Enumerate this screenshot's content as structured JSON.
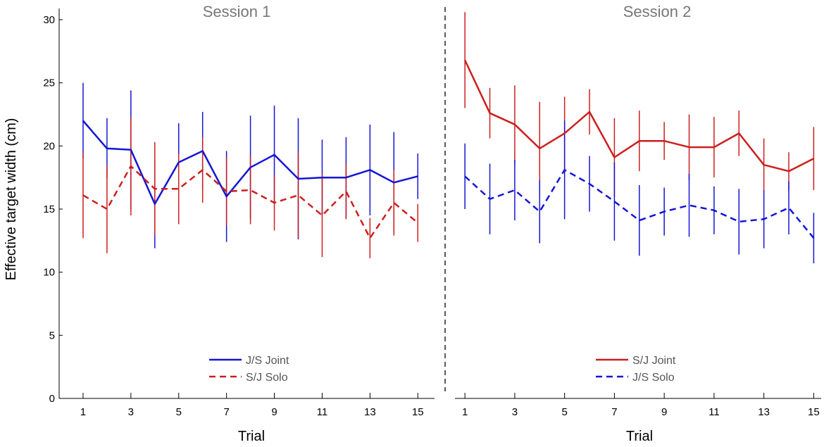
{
  "chart_data": {
    "type": "line",
    "ylabel": "Effective target width (cm)",
    "ylim": [
      0,
      30
    ],
    "yticks": [
      0,
      5,
      10,
      15,
      20,
      25,
      30
    ],
    "panels": [
      {
        "title": "Session 1",
        "xlabel": "Trial",
        "xlim": [
          0,
          15.7
        ],
        "xticks": [
          1,
          3,
          5,
          7,
          9,
          11,
          13,
          15
        ],
        "x": [
          1,
          2,
          3,
          4,
          5,
          6,
          7,
          8,
          9,
          10,
          11,
          12,
          13,
          14,
          15
        ],
        "series": [
          {
            "name": "J/S Joint",
            "color": "#1515d4",
            "dash": false,
            "values": [
              22.0,
              19.8,
              19.7,
              15.4,
              18.7,
              19.6,
              16.0,
              18.3,
              19.3,
              17.4,
              17.5,
              17.5,
              18.1,
              17.1,
              17.6
            ],
            "err": [
              3.0,
              2.4,
              4.7,
              3.5,
              3.1,
              3.1,
              3.6,
              4.1,
              3.9,
              4.8,
              3.0,
              3.2,
              3.6,
              4.0,
              1.8
            ]
          },
          {
            "name": "S/J Solo",
            "color": "#cc1f1f",
            "dash": true,
            "values": [
              16.1,
              15.0,
              18.4,
              16.6,
              16.6,
              18.1,
              16.4,
              16.5,
              15.5,
              16.1,
              14.5,
              16.4,
              12.7,
              15.5,
              13.9
            ],
            "err": [
              3.4,
              3.5,
              3.9,
              3.7,
              2.8,
              2.6,
              2.7,
              2.7,
              2.2,
              3.4,
              3.3,
              2.2,
              1.6,
              2.6,
              1.5
            ]
          }
        ]
      },
      {
        "title": "Session 2",
        "xlabel": "Trial",
        "xlim": [
          0.6,
          15.3
        ],
        "xticks": [
          1,
          3,
          5,
          7,
          9,
          11,
          13,
          15
        ],
        "x": [
          1,
          2,
          3,
          4,
          5,
          6,
          7,
          8,
          9,
          10,
          11,
          12,
          13,
          14,
          15
        ],
        "series": [
          {
            "name": "S/J Joint",
            "color": "#cc1f1f",
            "dash": false,
            "values": [
              26.8,
              22.6,
              21.7,
              19.8,
              21.0,
              22.7,
              19.1,
              20.4,
              20.4,
              19.9,
              19.9,
              21.0,
              18.5,
              18.0,
              19.0
            ],
            "err": [
              3.8,
              2.0,
              3.1,
              3.7,
              2.9,
              1.8,
              3.1,
              2.4,
              1.5,
              2.6,
              2.4,
              1.8,
              2.1,
              1.5,
              2.5
            ]
          },
          {
            "name": "J/S Solo",
            "color": "#1515d4",
            "dash": true,
            "values": [
              17.6,
              15.8,
              16.5,
              14.8,
              18.1,
              17.0,
              15.6,
              14.1,
              14.8,
              15.3,
              14.9,
              14.0,
              14.2,
              15.1,
              12.7
            ],
            "err": [
              2.6,
              2.8,
              2.4,
              2.5,
              3.9,
              2.2,
              3.1,
              2.8,
              1.9,
              2.5,
              1.9,
              2.6,
              2.3,
              2.1,
              2.0
            ]
          }
        ]
      }
    ]
  }
}
